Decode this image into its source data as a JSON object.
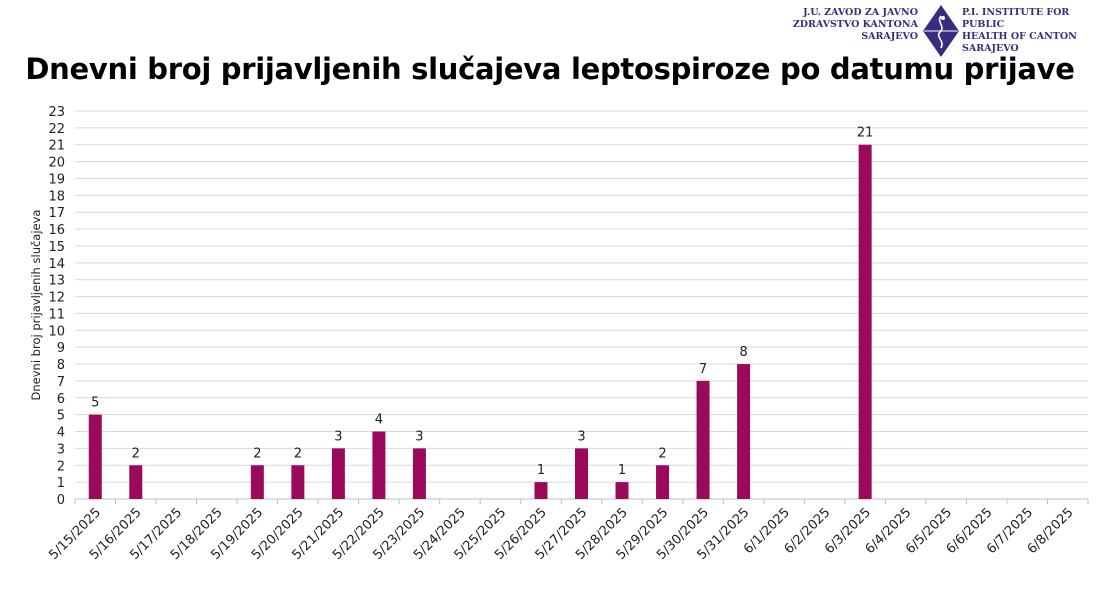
{
  "logo": {
    "left_lines": [
      "J.U. ZAVOD ZA JAVNO",
      "ZDRAVSTVO KANTONA",
      "SARAJEVO"
    ],
    "right_lines": [
      "P.I. INSTITUTE FOR PUBLIC",
      "HEALTH OF CANTON",
      "SARAJEVO"
    ],
    "color": "#3a2a80"
  },
  "chart_data": {
    "type": "bar",
    "title": "Dnevni broj prijavljenih slučajeva leptospiroze po datumu prijave",
    "xlabel": "",
    "ylabel": "Dnevni broj prijavljenih slučajeva",
    "ylim": [
      0,
      23
    ],
    "ytick_step": 1,
    "grid": true,
    "bar_color": "#9b0a5a",
    "categories": [
      "5/15/2025",
      "5/16/2025",
      "5/17/2025",
      "5/18/2025",
      "5/19/2025",
      "5/20/2025",
      "5/21/2025",
      "5/22/2025",
      "5/23/2025",
      "5/24/2025",
      "5/25/2025",
      "5/26/2025",
      "5/27/2025",
      "5/28/2025",
      "5/29/2025",
      "5/30/2025",
      "5/31/2025",
      "6/1/2025",
      "6/2/2025",
      "6/3/2025",
      "6/4/2025",
      "6/5/2025",
      "6/6/2025",
      "6/7/2025",
      "6/8/2025"
    ],
    "values": [
      5,
      2,
      0,
      0,
      2,
      2,
      3,
      4,
      3,
      0,
      0,
      1,
      3,
      1,
      2,
      7,
      8,
      0,
      0,
      21,
      0,
      0,
      0,
      0,
      0
    ]
  }
}
